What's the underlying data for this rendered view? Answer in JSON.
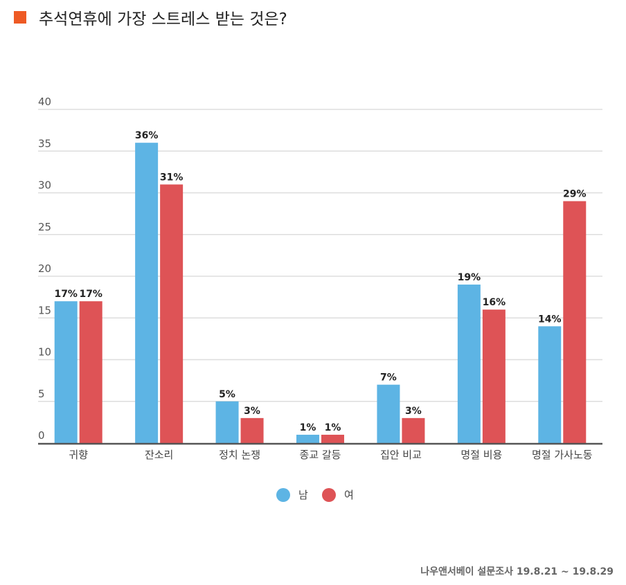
{
  "title": "추석연휴에 가장 스트레스 받는 것은?",
  "footer": "나우앤서베이 설문조사 19.8.21 ~ 19.8.29",
  "colors": {
    "title_marker": "#ee5a24",
    "male": "#5db4e4",
    "female": "#de5356",
    "grid": "#dddddd",
    "axis": "#555555"
  },
  "chart_data": {
    "type": "bar",
    "categories": [
      "귀향",
      "잔소리",
      "정치 논쟁",
      "종교 갈등",
      "집안 비교",
      "명절 비용",
      "명절 가사노동"
    ],
    "series": [
      {
        "name": "남",
        "values": [
          17,
          36,
          5,
          1,
          7,
          19,
          14
        ],
        "labels": [
          "17%",
          "36%",
          "5%",
          "1%",
          "7%",
          "19%",
          "14%"
        ]
      },
      {
        "name": "여",
        "values": [
          17,
          31,
          3,
          1,
          3,
          16,
          29
        ],
        "labels": [
          "17%",
          "31%",
          "3%",
          "1%",
          "3%",
          "16%",
          "29%"
        ]
      }
    ],
    "ylim": [
      0,
      40
    ],
    "yticks": [
      0,
      5,
      10,
      15,
      20,
      25,
      30,
      35,
      40
    ],
    "grid": true,
    "legend": "bottom-center"
  }
}
